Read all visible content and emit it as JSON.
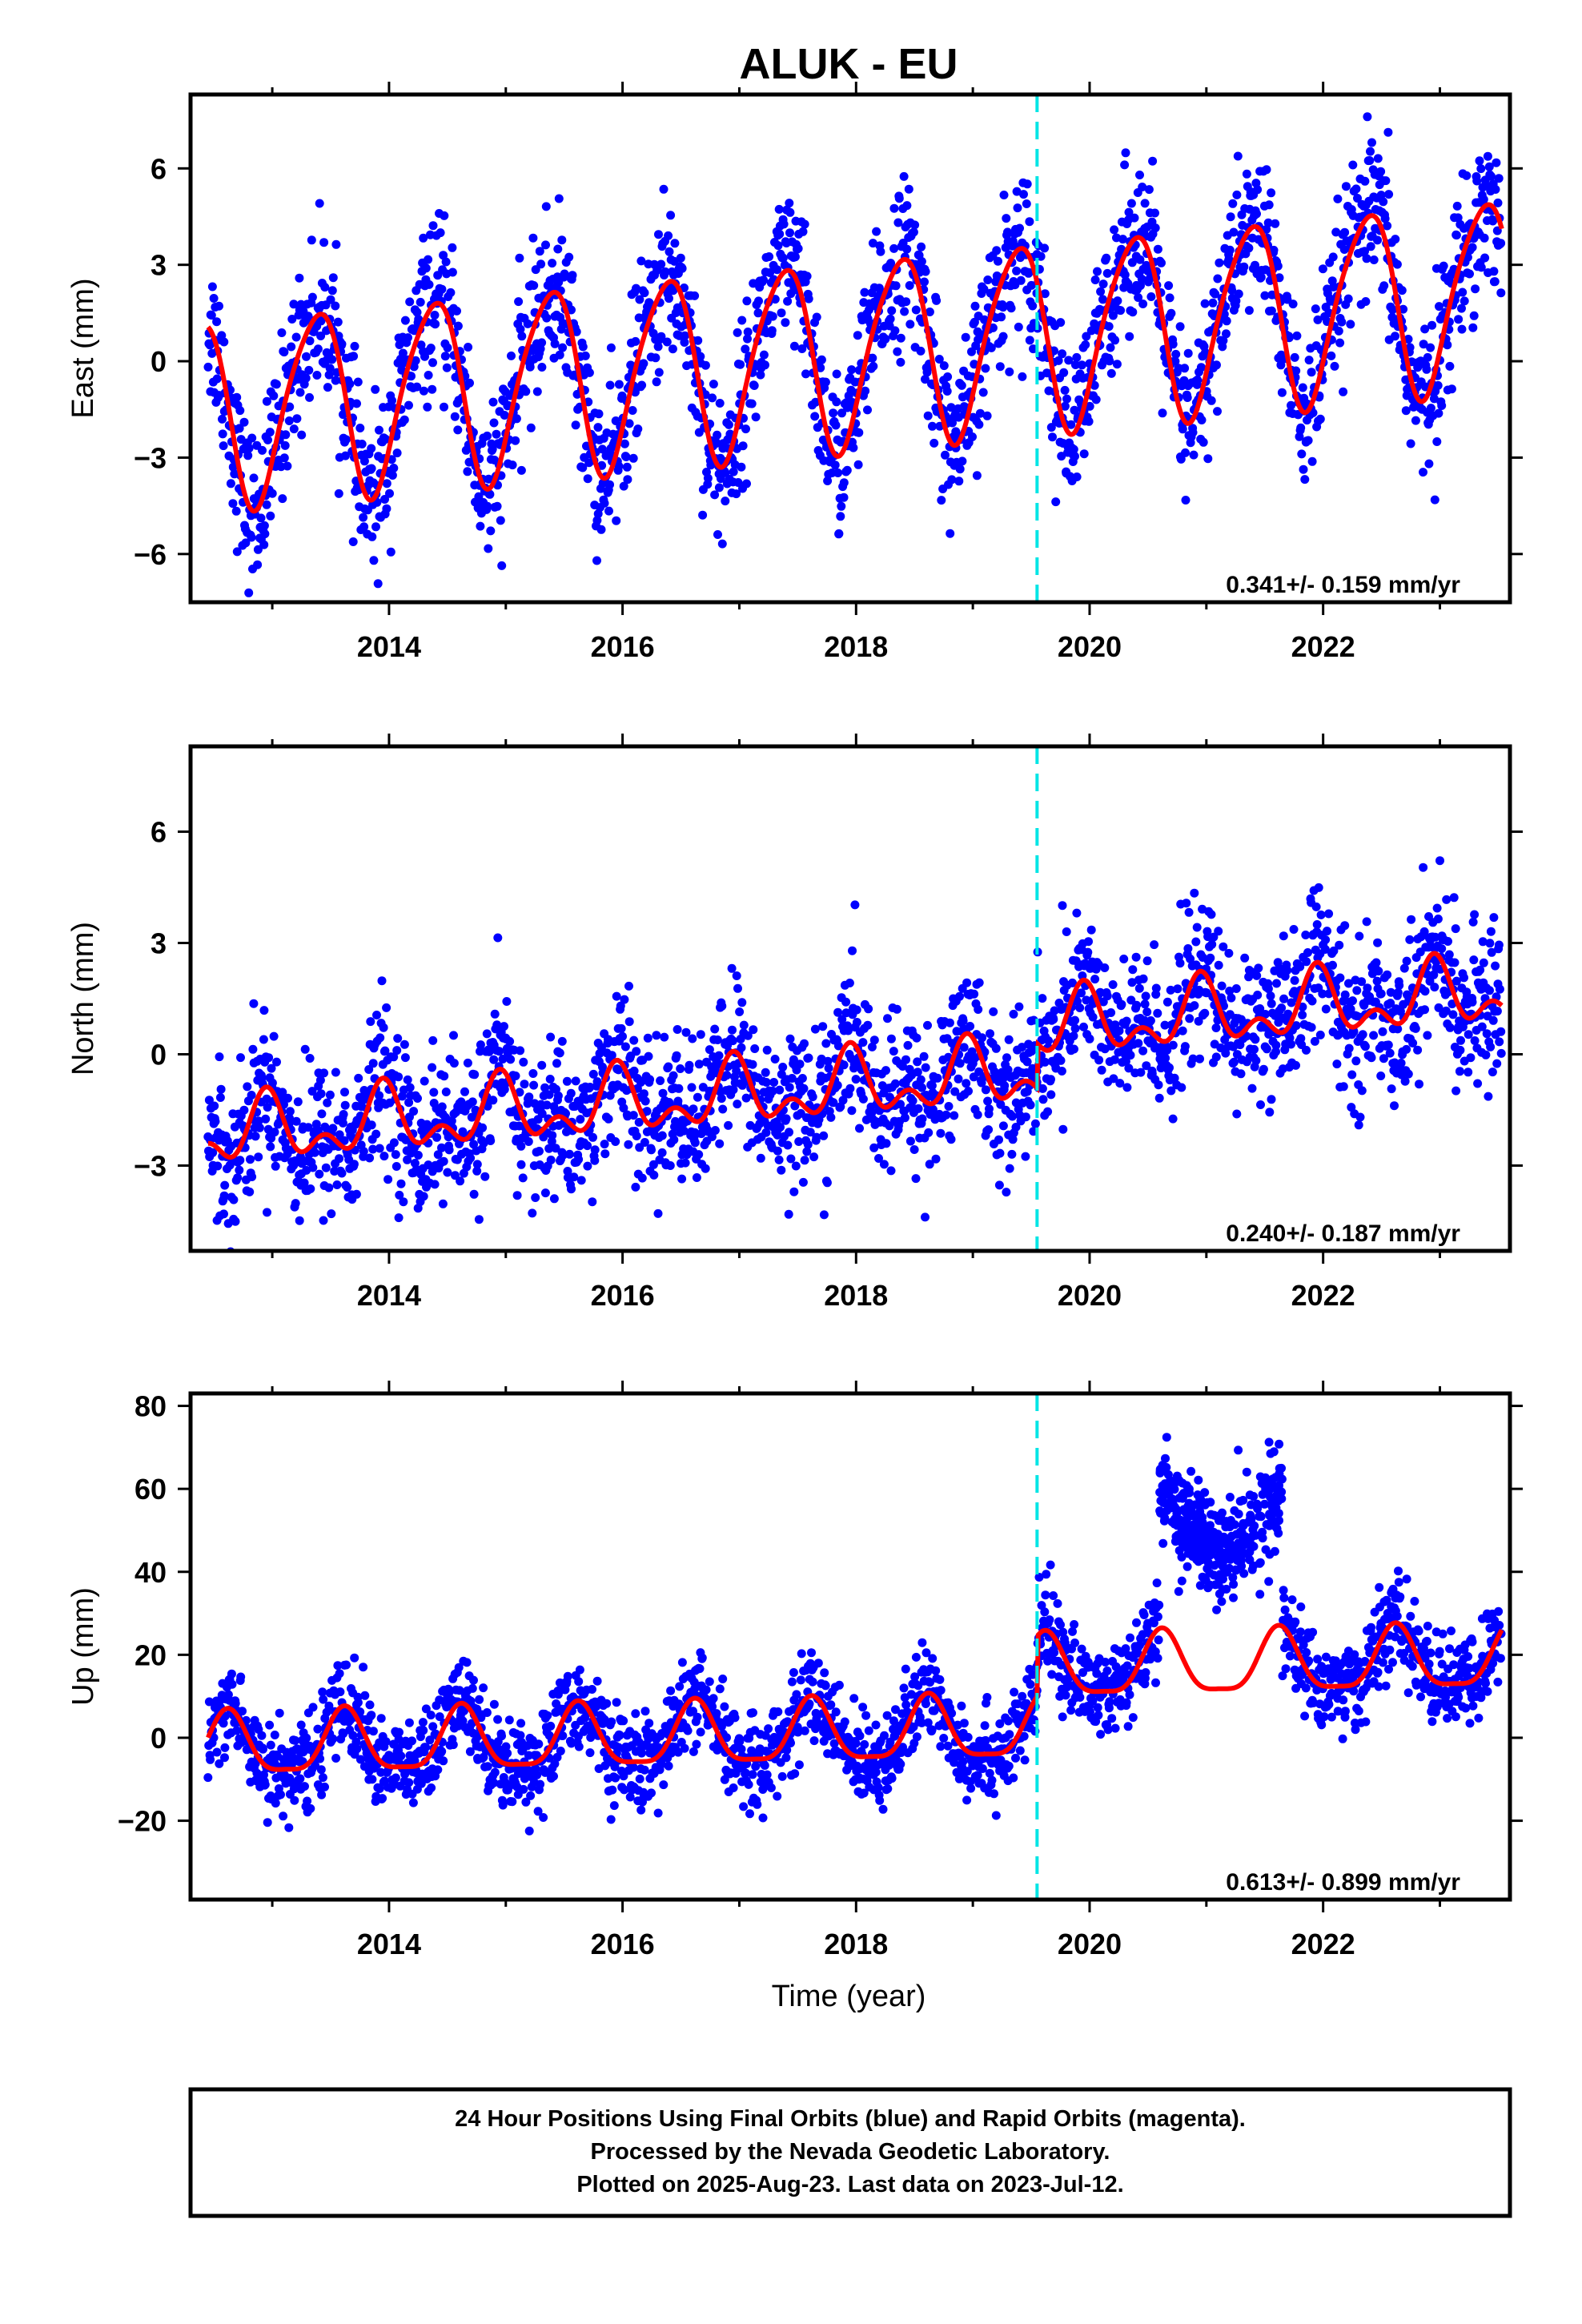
{
  "title": "ALUK - EU",
  "xlabel": "Time (year)",
  "footer": {
    "line1": "24 Hour Positions Using Final Orbits (blue) and Rapid Orbits (magenta).",
    "line2": "Processed by the Nevada Geodetic Laboratory.",
    "line3": "Plotted on 2025-Aug-23. Last data on 2023-Jul-12."
  },
  "colors": {
    "data": "#0000ff",
    "model": "#ff0000",
    "marker": "#00e5e5",
    "frame": "#000000"
  },
  "chart_data": [
    {
      "type": "scatter",
      "component": "east",
      "ylabel": "East (mm)",
      "rate_label": "0.341+/- 0.159 mm/yr",
      "xlim": [
        2012.3,
        2023.6
      ],
      "ylim": [
        -7.5,
        8.3
      ],
      "yticks": [
        6,
        3,
        0,
        -3,
        -6
      ],
      "ytick_labels": [
        "6",
        "3",
        "0",
        "−3",
        "−6"
      ],
      "xticks": [
        2014,
        2016,
        2018,
        2020,
        2022
      ],
      "xtick_labels": [
        "2014",
        "2016",
        "2018",
        "2020",
        "2022"
      ],
      "marker_x": 2019.55,
      "data_range": [
        2012.45,
        2023.53
      ],
      "model": {
        "offset": -1.6,
        "rate": 0.341,
        "t0": 2012.45,
        "amp1": 2.9,
        "peak1": 2013.37,
        "amp2": 0.4,
        "peak2": 2013.05,
        "scatter": 1.2
      },
      "series": [
        {
          "name": "Final Orbits",
          "color": "#0000ff"
        },
        {
          "name": "Model",
          "color": "#ff0000"
        }
      ]
    },
    {
      "type": "scatter",
      "component": "north",
      "ylabel": "North (mm)",
      "rate_label": "0.240+/- 0.187 mm/yr",
      "xlim": [
        2012.3,
        2023.6
      ],
      "ylim": [
        -5.3,
        8.3
      ],
      "yticks": [
        6,
        3,
        0,
        -3
      ],
      "ytick_labels": [
        "6",
        "3",
        "0",
        "−3"
      ],
      "xticks": [
        2014,
        2016,
        2018,
        2020,
        2022
      ],
      "xtick_labels": [
        "2014",
        "2016",
        "2018",
        "2020",
        "2022"
      ],
      "marker_x": 2019.55,
      "data_range": [
        2012.45,
        2023.53
      ],
      "model": {
        "offset": -2.2,
        "rate": 0.24,
        "t0": 2012.45,
        "amp1": 0.7,
        "peak1": 2012.95,
        "amp2": 0.5,
        "peak2": 2012.95,
        "scatter": 1.0
      },
      "steps": [
        {
          "x": 2019.55,
          "dy": 1.2
        }
      ],
      "series": [
        {
          "name": "Final Orbits",
          "color": "#0000ff"
        },
        {
          "name": "Model",
          "color": "#ff0000"
        }
      ]
    },
    {
      "type": "scatter",
      "component": "up",
      "ylabel": "Up (mm)",
      "rate_label": "0.613+/- 0.899 mm/yr",
      "xlim": [
        2012.3,
        2023.6
      ],
      "ylim": [
        -39,
        83
      ],
      "yticks": [
        80,
        60,
        40,
        20,
        0,
        -20
      ],
      "ytick_labels": [
        "80",
        "60",
        "40",
        "20",
        "0",
        "−20"
      ],
      "xticks": [
        2014,
        2016,
        2018,
        2020,
        2022
      ],
      "xtick_labels": [
        "2014",
        "2016",
        "2018",
        "2020",
        "2022"
      ],
      "marker_x": 2019.55,
      "data_range": [
        2012.45,
        2023.53
      ],
      "model": {
        "offset": -2.5,
        "rate": 0.613,
        "t0": 2012.45,
        "amp1": 7.5,
        "peak1": 2012.62,
        "amp2": 2.0,
        "peak2": 2012.62,
        "scatter": 5.5
      },
      "steps": [
        {
          "x": 2019.55,
          "dy": 14.5
        }
      ],
      "gaps": [
        [
          2020.6,
          2021.65
        ]
      ],
      "outlier_segment": {
        "x": [
          2020.6,
          2021.65
        ],
        "y_edges": 62,
        "y_center": 45
      },
      "series": [
        {
          "name": "Final Orbits",
          "color": "#0000ff"
        },
        {
          "name": "Model",
          "color": "#ff0000"
        }
      ]
    }
  ]
}
